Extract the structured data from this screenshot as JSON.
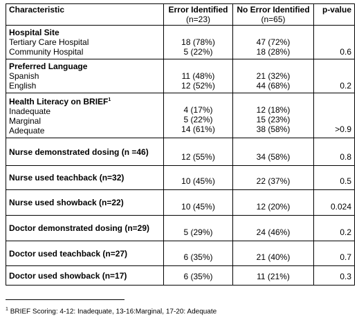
{
  "header": {
    "columns": [
      {
        "title": "Characteristic"
      },
      {
        "title": "Error Identified",
        "subtitle": "(n=23)"
      },
      {
        "title": "No Error Identified",
        "subtitle": "(n=65)"
      },
      {
        "title": "p-value"
      }
    ]
  },
  "table": {
    "groups": [
      {
        "label": "Hospital Site",
        "p_value": "0.6",
        "rows": [
          {
            "label": "Tertiary Care Hospital",
            "error": "18 (78%)",
            "no_error": "47 (72%)"
          },
          {
            "label": "Community Hospital",
            "error": "5 (22%)",
            "no_error": "18 (28%)"
          }
        ]
      },
      {
        "label": "Preferred Language",
        "p_value": "0.2",
        "rows": [
          {
            "label": "Spanish",
            "error": "11 (48%)",
            "no_error": "21 (32%)"
          },
          {
            "label": "English",
            "error": "12 (52%)",
            "no_error": "44 (68%)"
          }
        ]
      },
      {
        "label": "Health Literacy on BRIEF",
        "marker": "1",
        "p_value": ">0.9",
        "rows": [
          {
            "label": "Inadequate",
            "error": "4 (17%)",
            "no_error": "12 (18%)"
          },
          {
            "label": "Marginal",
            "error": "5 (22%)",
            "no_error": "15 (23%)"
          },
          {
            "label": "Adequate",
            "error": "14 (61%)",
            "no_error": "38 (58%)"
          }
        ]
      }
    ],
    "rows": [
      {
        "label": "Nurse demonstrated dosing (n =46)",
        "error": "12 (55%)",
        "no_error": "34 (58%)",
        "p_value": "0.8"
      },
      {
        "label": "Nurse used teachback (n=32)",
        "error": "10 (45%)",
        "no_error": "22 (37%)",
        "p_value": "0.5"
      },
      {
        "label": "Nurse used showback (n=22)",
        "error": "10 (45%)",
        "no_error": "12 (20%)",
        "p_value": "0.024"
      },
      {
        "label": "Doctor demonstrated dosing (n=29)",
        "error": "5 (29%)",
        "no_error": "24 (46%)",
        "p_value": "0.2"
      },
      {
        "label": "Doctor used teachback (n=27)",
        "error": "6 (35%)",
        "no_error": "21 (40%)",
        "p_value": "0.7"
      },
      {
        "label": "Doctor used showback (n=17)",
        "error": "6 (35%)",
        "no_error": "11 (21%)",
        "p_value": "0.3"
      }
    ]
  },
  "footnote": {
    "marker": "1",
    "text": "BRIEF Scoring: 4-12: Inadequate, 13-16:Marginal, 17-20: Adequate"
  }
}
